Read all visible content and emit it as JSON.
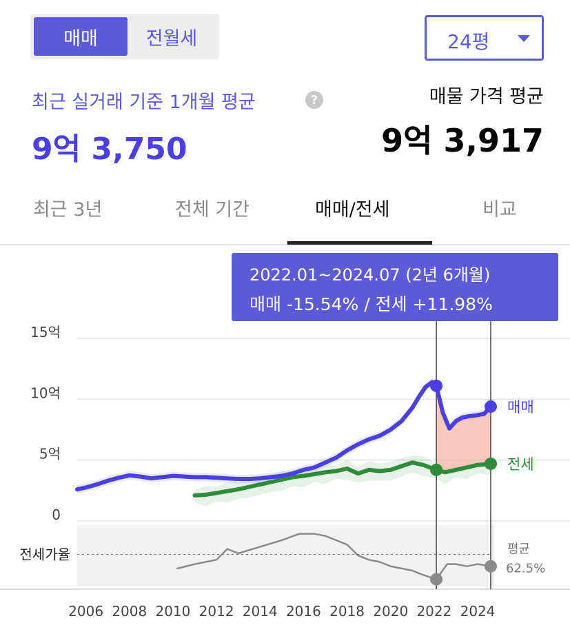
{
  "controls": {
    "trade_type_tabs": [
      "매매",
      "전월세"
    ],
    "selected_trade_type": "매매",
    "area_select": "24평"
  },
  "summary": {
    "recent_label": "최근 실거래 기준 1개월 평균",
    "recent_value": "9억 3,750",
    "listing_label": "매물 가격 평균",
    "listing_value": "9억 3,917"
  },
  "period_tabs": [
    "최근 3년",
    "전체 기간",
    "매매/전세",
    "비교"
  ],
  "selected_period_tab": "매매/전세",
  "tooltip": {
    "period": "2022.01~2024.07 (2년 6개월)",
    "change": "매매 -15.54%  /  전세 +11.98%"
  },
  "colors": {
    "accent": "#5b5bd6",
    "sale_line": "#4a3fe0",
    "jeonse_line": "#2e8b3a",
    "ratio_line": "#8a8a8a",
    "highlight_fill": "#f7b7aa"
  },
  "chart_data": {
    "type": "line",
    "x_unit": "year",
    "xlim": [
      2005.5,
      2025.4
    ],
    "ylim": [
      0,
      15
    ],
    "yticks": [
      {
        "value": 15,
        "label": "15억"
      },
      {
        "value": 10,
        "label": "10억"
      },
      {
        "value": 5,
        "label": "5억"
      },
      {
        "value": 0,
        "label": "0"
      }
    ],
    "xticks": [
      "2006",
      "2008",
      "2010",
      "2012",
      "2014",
      "2016",
      "2018",
      "2020",
      "2022",
      "2024"
    ],
    "series": [
      {
        "name": "매매",
        "x": [
          2005.6,
          2006.0,
          2006.5,
          2007.0,
          2007.5,
          2008.0,
          2008.5,
          2009.0,
          2009.5,
          2010.0,
          2010.5,
          2011.0,
          2011.5,
          2012.0,
          2012.5,
          2013.0,
          2013.5,
          2014.0,
          2014.5,
          2015.0,
          2015.5,
          2016.0,
          2016.5,
          2017.0,
          2017.5,
          2018.0,
          2018.5,
          2019.0,
          2019.5,
          2020.0,
          2020.5,
          2021.0,
          2021.3,
          2021.6,
          2021.9,
          2022.1,
          2022.4,
          2022.7,
          2023.0,
          2023.3,
          2023.6,
          2024.0,
          2024.3,
          2024.6
        ],
        "values": [
          2.6,
          2.75,
          3.0,
          3.3,
          3.55,
          3.75,
          3.65,
          3.5,
          3.6,
          3.7,
          3.65,
          3.6,
          3.6,
          3.55,
          3.5,
          3.45,
          3.45,
          3.5,
          3.6,
          3.7,
          3.9,
          4.2,
          4.4,
          4.8,
          5.2,
          5.8,
          6.3,
          6.7,
          7.0,
          7.5,
          8.2,
          9.3,
          10.2,
          11.0,
          11.4,
          11.1,
          8.9,
          7.6,
          8.2,
          8.5,
          8.6,
          8.7,
          8.8,
          9.4
        ]
      },
      {
        "name": "전세",
        "x": [
          2011.0,
          2011.5,
          2012.0,
          2012.5,
          2013.0,
          2013.5,
          2014.0,
          2014.5,
          2015.0,
          2015.5,
          2016.0,
          2016.5,
          2017.0,
          2017.5,
          2018.0,
          2018.5,
          2019.0,
          2019.5,
          2020.0,
          2020.5,
          2021.0,
          2021.5,
          2022.1,
          2022.5,
          2023.0,
          2023.5,
          2024.0,
          2024.6
        ],
        "values": [
          2.1,
          2.15,
          2.3,
          2.45,
          2.6,
          2.8,
          3.0,
          3.2,
          3.4,
          3.6,
          3.7,
          3.85,
          4.0,
          4.1,
          4.3,
          3.9,
          4.2,
          4.1,
          4.2,
          4.5,
          4.8,
          4.6,
          4.2,
          4.0,
          4.2,
          4.4,
          4.6,
          4.7
        ]
      },
      {
        "name": "전세가율",
        "x": [
          2010.2,
          2011.0,
          2012.0,
          2012.5,
          2013.0,
          2014.0,
          2015.0,
          2015.8,
          2016.5,
          2017.0,
          2017.5,
          2018.0,
          2018.5,
          2019.0,
          2019.5,
          2020.0,
          2020.5,
          2021.0,
          2021.5,
          2022.1,
          2022.6,
          2023.0,
          2023.5,
          2024.0,
          2024.6
        ],
        "values": [
          56,
          58,
          60,
          65,
          63,
          66,
          69,
          72,
          72,
          71,
          69,
          67,
          62,
          60,
          59,
          57,
          56,
          55,
          53,
          51,
          58,
          58,
          57,
          58,
          57
        ]
      }
    ],
    "ratio_panel": {
      "label": "전세가율",
      "average_label": "평균",
      "average_value": "62.5%",
      "average": 62.5,
      "range": [
        48,
        76
      ]
    },
    "highlight": {
      "start": 2022.1,
      "end": 2024.6
    },
    "series_labels": [
      "매매",
      "전세"
    ]
  }
}
